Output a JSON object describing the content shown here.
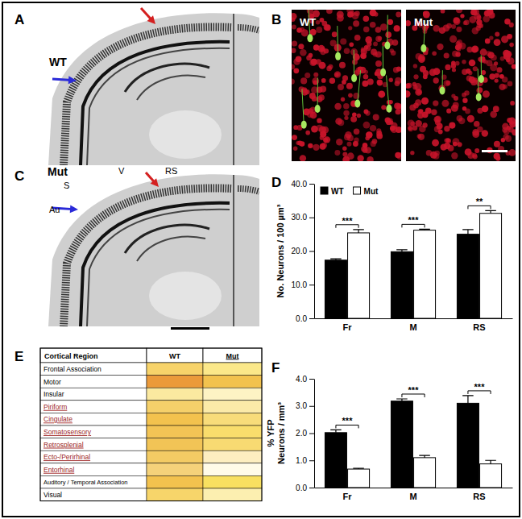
{
  "figure": {
    "panel_labels": [
      "A",
      "B",
      "C",
      "D",
      "E",
      "F"
    ],
    "panel_a": {
      "genotype": "WT"
    },
    "panel_b": {
      "labels": [
        "WT",
        "Mut"
      ]
    },
    "panel_c": {
      "genotype": "Mut",
      "regions": [
        "S",
        "V",
        "RS",
        "Au"
      ]
    },
    "table": {
      "header": [
        {
          "text": "Cortical Region",
          "underlined": false
        },
        {
          "text": "WT",
          "underlined": false
        },
        {
          "text": "Mut",
          "underlined": true
        }
      ],
      "rows": [
        {
          "region": "Frontal Association",
          "highlighted": false,
          "wt_color": "#f7d36a",
          "mut_color": "#fbe88a"
        },
        {
          "region": "Motor",
          "highlighted": false,
          "wt_color": "#eb9a3a",
          "mut_color": "#f2c24e"
        },
        {
          "region": "Insular",
          "highlighted": false,
          "wt_color": "#fbe9a0",
          "mut_color": "#fdf3c4"
        },
        {
          "region": "Piriform",
          "highlighted": true,
          "wt_color": "#f5d06a",
          "mut_color": "#fbeaa8"
        },
        {
          "region": "Cingulate",
          "highlighted": true,
          "wt_color": "#f3c24e",
          "mut_color": "#f8dc7a"
        },
        {
          "region": "Somatosensory",
          "highlighted": true,
          "wt_color": "#f3c455",
          "mut_color": "#f9dd6c"
        },
        {
          "region": "Retrosplenial",
          "highlighted": true,
          "wt_color": "#f2c456",
          "mut_color": "#f8da72"
        },
        {
          "region": "Ecto-/Perirhinal",
          "highlighted": true,
          "wt_color": "#f3cb64",
          "mut_color": "#fdeec0"
        },
        {
          "region": "Entorhinal",
          "highlighted": true,
          "wt_color": "#f5d27a",
          "mut_color": "#fffbe8"
        },
        {
          "region": "Auditory / Temporal Association",
          "highlighted": false,
          "wt_color": "#f3c24e",
          "mut_color": "#f8e060"
        },
        {
          "region": "Visual",
          "highlighted": false,
          "wt_color": "#f7d56a",
          "mut_color": "#fcefb0"
        }
      ]
    }
  },
  "chart_data": [
    {
      "type": "bar",
      "y_label": "No. Neurons / 100 µm³",
      "categories": [
        "Fr",
        "M",
        "RS"
      ],
      "series": [
        {
          "name": "WT",
          "color": "#000000",
          "values": [
            17.3,
            19.8,
            25.0
          ],
          "errors": [
            0.4,
            0.6,
            1.4
          ]
        },
        {
          "name": "Mut",
          "color": "#ffffff",
          "values": [
            25.4,
            26.2,
            31.2
          ],
          "errors": [
            1.0,
            0.3,
            0.8
          ]
        }
      ],
      "ylim": [
        0,
        40
      ],
      "yticks": [
        {
          "value": 0,
          "label": "0.0"
        },
        {
          "value": 10,
          "label": "10.0"
        },
        {
          "value": 20,
          "label": "20.0"
        },
        {
          "value": 30,
          "label": "30.0"
        },
        {
          "value": 40,
          "label": "40.0"
        }
      ],
      "annotations": [
        "***",
        "***",
        "**"
      ],
      "legend": "upper left"
    },
    {
      "type": "bar",
      "y_label": [
        "% YFP",
        "Neurons / mm³"
      ],
      "categories": [
        "Fr",
        "M",
        "RS"
      ],
      "series": [
        {
          "name": "WT",
          "color": "#000000",
          "values": [
            2.02,
            3.18,
            3.1
          ],
          "errors": [
            0.1,
            0.08,
            0.28
          ]
        },
        {
          "name": "Mut",
          "color": "#ffffff",
          "values": [
            0.68,
            1.1,
            0.87
          ],
          "errors": [
            0.03,
            0.08,
            0.13
          ]
        }
      ],
      "ylim": [
        0,
        4
      ],
      "yticks": [
        {
          "value": 0,
          "label": "0.0"
        },
        {
          "value": 1,
          "label": "1.0"
        },
        {
          "value": 2,
          "label": "2.0"
        },
        {
          "value": 3,
          "label": "3.0"
        },
        {
          "value": 4,
          "label": "4.0"
        }
      ],
      "annotations": [
        "***",
        "***",
        "***"
      ]
    }
  ]
}
